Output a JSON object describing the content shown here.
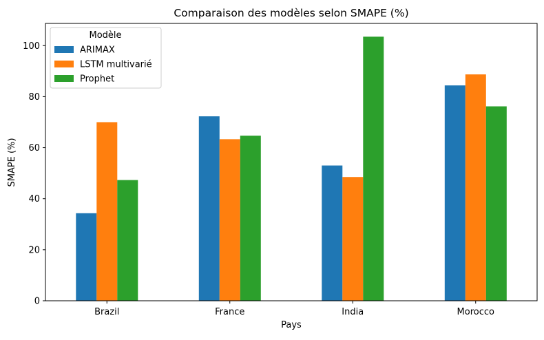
{
  "chart_data": {
    "type": "bar",
    "title": "Comparaison des modèles selon SMAPE (%)",
    "xlabel": "Pays",
    "ylabel": "SMAPE (%)",
    "categories": [
      "Brazil",
      "France",
      "India",
      "Morocco"
    ],
    "series": [
      {
        "name": "ARIMAX",
        "color": "#1f77b4",
        "values": [
          34.3,
          72.3,
          53.0,
          84.4
        ]
      },
      {
        "name": "LSTM multivarié",
        "color": "#ff7f0e",
        "values": [
          70.0,
          63.3,
          48.5,
          88.7
        ]
      },
      {
        "name": "Prophet",
        "color": "#2ca02c",
        "values": [
          47.3,
          64.7,
          103.5,
          76.2
        ]
      }
    ],
    "ylim": [
      0,
      108.7
    ],
    "yticks": [
      0,
      20,
      40,
      60,
      80,
      100
    ],
    "legend": {
      "title": "Modèle",
      "placement": "top-left"
    },
    "grid": false
  }
}
